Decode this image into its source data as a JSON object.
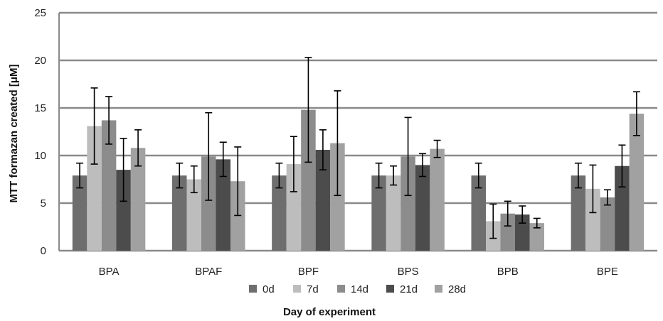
{
  "chart_data": {
    "type": "bar",
    "title": "",
    "xlabel": "Day of experiment",
    "ylabel": "MTT formazan created [μM]",
    "ylim": [
      0,
      25
    ],
    "yticks": [
      0,
      5,
      10,
      15,
      20,
      25
    ],
    "grid": true,
    "legend_position": "bottom",
    "categories": [
      "BPA",
      "BPAF",
      "BPF",
      "BPS",
      "BPB",
      "BPE"
    ],
    "series": [
      {
        "name": "0d",
        "color": "#6e6e6e",
        "values": [
          7.9,
          7.9,
          7.9,
          7.9,
          7.9,
          7.9
        ],
        "error": [
          1.3,
          1.3,
          1.3,
          1.3,
          1.3,
          1.3
        ]
      },
      {
        "name": "7d",
        "color": "#bdbdbd",
        "values": [
          13.1,
          7.5,
          9.1,
          7.9,
          3.1,
          6.5
        ],
        "error": [
          4.0,
          1.4,
          2.9,
          1.0,
          1.8,
          2.5
        ]
      },
      {
        "name": "14d",
        "color": "#8c8c8c",
        "values": [
          13.7,
          9.9,
          14.8,
          9.9,
          3.9,
          5.6
        ],
        "error": [
          2.5,
          4.6,
          5.5,
          4.1,
          1.3,
          0.8
        ]
      },
      {
        "name": "21d",
        "color": "#4c4c4c",
        "values": [
          8.5,
          9.6,
          10.6,
          9.0,
          3.8,
          8.9
        ],
        "error": [
          3.3,
          1.8,
          2.1,
          1.2,
          0.9,
          2.2
        ]
      },
      {
        "name": "28d",
        "color": "#a1a1a1",
        "values": [
          10.8,
          7.3,
          11.3,
          10.7,
          2.9,
          14.4
        ],
        "error": [
          1.9,
          3.6,
          5.5,
          0.9,
          0.5,
          2.3
        ]
      }
    ]
  }
}
